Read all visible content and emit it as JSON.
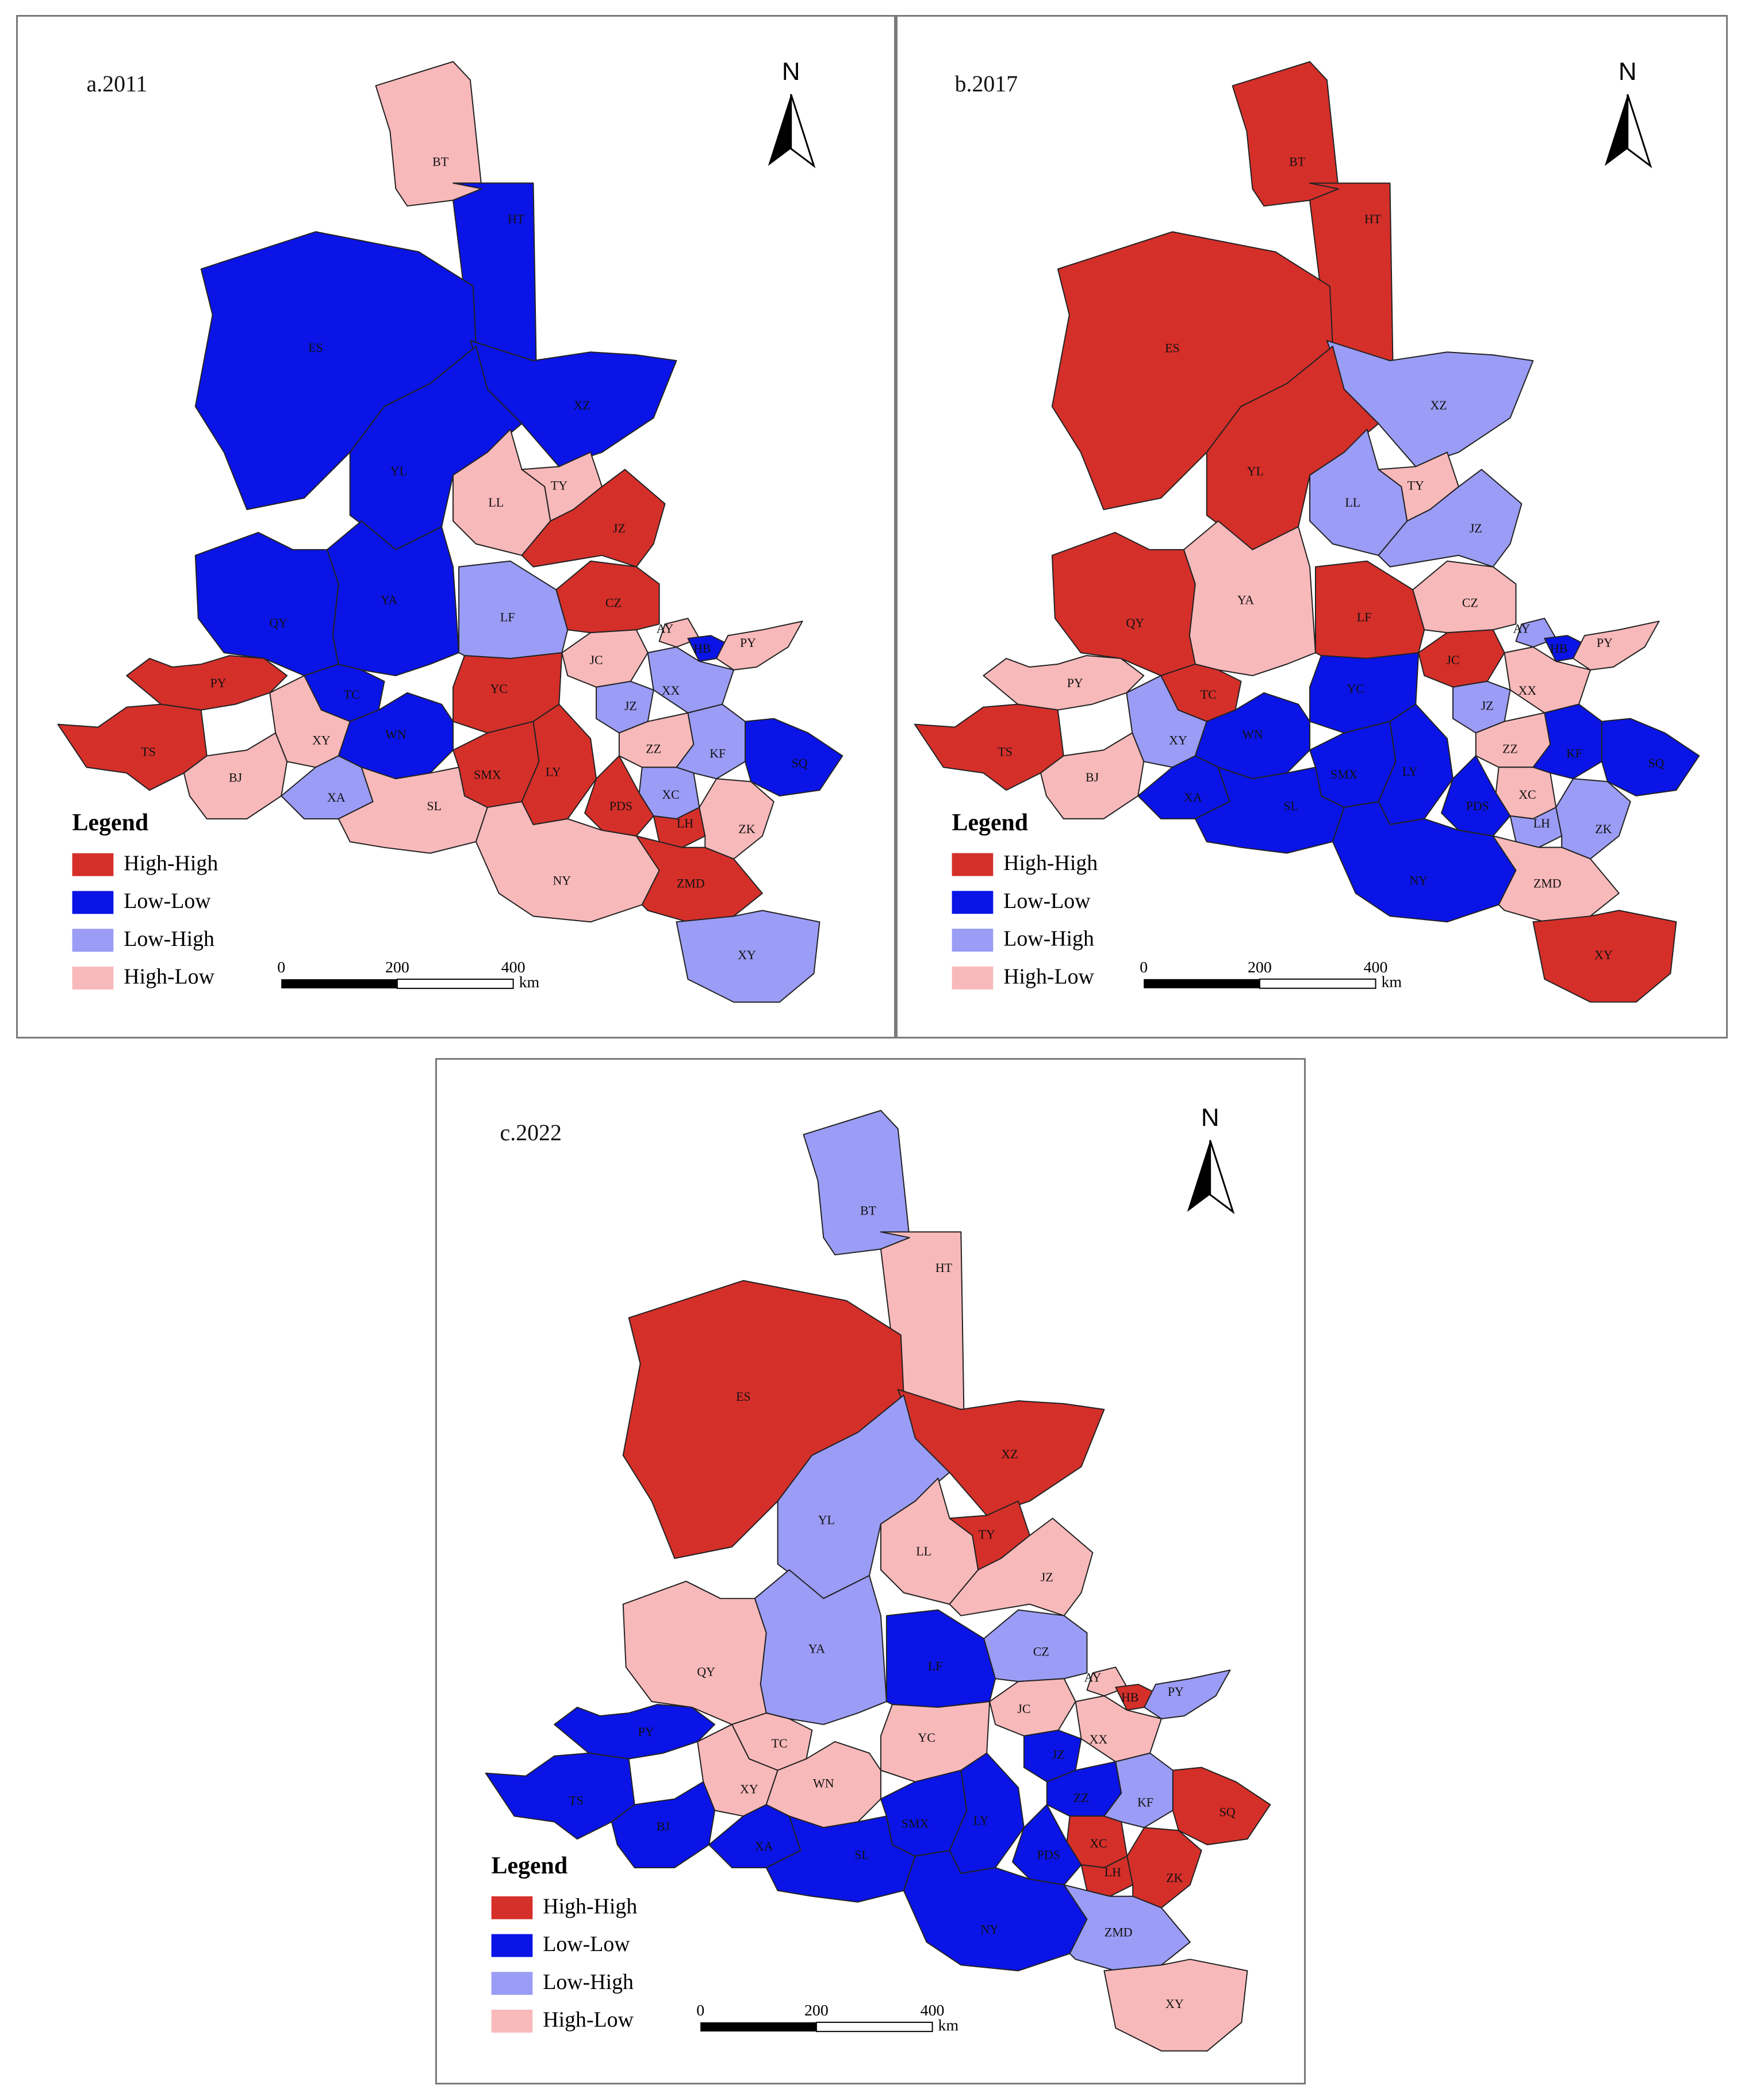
{
  "colors": {
    "High-High": "#d52f2a",
    "Low-Low": "#0a14e6",
    "Low-High": "#9a9cf5",
    "High-Low": "#f8b9ba"
  },
  "legend": {
    "title": "Legend",
    "items": [
      "High-High",
      "Low-Low",
      "Low-High",
      "High-Low"
    ]
  },
  "scale": {
    "ticks": [
      "0",
      "200",
      "400"
    ],
    "unit": "km"
  },
  "north": "N",
  "panels": [
    {
      "id": "a",
      "title": "a.2011",
      "regions": [
        {
          "label": "BT",
          "cls": "High-Low"
        },
        {
          "label": "HT",
          "cls": "Low-Low"
        },
        {
          "label": "ES",
          "cls": "Low-Low"
        },
        {
          "label": "XZ",
          "cls": "Low-Low"
        },
        {
          "label": "YL",
          "cls": "Low-Low"
        },
        {
          "label": "LL",
          "cls": "High-Low"
        },
        {
          "label": "TY",
          "cls": "High-Low"
        },
        {
          "label": "JZ",
          "cls": "High-High"
        },
        {
          "label": "QY",
          "cls": "Low-Low"
        },
        {
          "label": "YA",
          "cls": "Low-Low"
        },
        {
          "label": "LF",
          "cls": "Low-High"
        },
        {
          "label": "CZ",
          "cls": "High-High"
        },
        {
          "label": "AY",
          "cls": "High-Low"
        },
        {
          "label": "HB",
          "cls": "Low-Low"
        },
        {
          "label": "PY",
          "cls": "High-Low"
        },
        {
          "label": "JC",
          "cls": "High-Low"
        },
        {
          "label": "PY",
          "cls": "High-High"
        },
        {
          "label": "TC",
          "cls": "Low-Low"
        },
        {
          "label": "YC",
          "cls": "High-High"
        },
        {
          "label": "JZ",
          "cls": "Low-High"
        },
        {
          "label": "XX",
          "cls": "Low-High"
        },
        {
          "label": "TS",
          "cls": "High-High"
        },
        {
          "label": "XY",
          "cls": "High-Low"
        },
        {
          "label": "WN",
          "cls": "Low-Low"
        },
        {
          "label": "ZZ",
          "cls": "High-Low"
        },
        {
          "label": "KF",
          "cls": "Low-High"
        },
        {
          "label": "SQ",
          "cls": "Low-Low"
        },
        {
          "label": "BJ",
          "cls": "High-Low"
        },
        {
          "label": "SMX",
          "cls": "High-High"
        },
        {
          "label": "LY",
          "cls": "High-High"
        },
        {
          "label": "XC",
          "cls": "Low-High"
        },
        {
          "label": "XA",
          "cls": "Low-High"
        },
        {
          "label": "SL",
          "cls": "High-Low"
        },
        {
          "label": "PDS",
          "cls": "High-High"
        },
        {
          "label": "LH",
          "cls": "High-High"
        },
        {
          "label": "ZK",
          "cls": "High-Low"
        },
        {
          "label": "NY",
          "cls": "High-Low"
        },
        {
          "label": "ZMD",
          "cls": "High-High"
        },
        {
          "label": "XY",
          "cls": "Low-High"
        }
      ]
    },
    {
      "id": "b",
      "title": "b.2017",
      "regions": [
        {
          "label": "BT",
          "cls": "High-High"
        },
        {
          "label": "HT",
          "cls": "High-High"
        },
        {
          "label": "ES",
          "cls": "High-High"
        },
        {
          "label": "XZ",
          "cls": "Low-High"
        },
        {
          "label": "YL",
          "cls": "High-High"
        },
        {
          "label": "LL",
          "cls": "Low-High"
        },
        {
          "label": "TY",
          "cls": "High-Low"
        },
        {
          "label": "JZ",
          "cls": "Low-High"
        },
        {
          "label": "QY",
          "cls": "High-High"
        },
        {
          "label": "YA",
          "cls": "High-Low"
        },
        {
          "label": "LF",
          "cls": "High-High"
        },
        {
          "label": "CZ",
          "cls": "High-Low"
        },
        {
          "label": "AY",
          "cls": "Low-High"
        },
        {
          "label": "HB",
          "cls": "Low-Low"
        },
        {
          "label": "PY",
          "cls": "High-Low"
        },
        {
          "label": "JC",
          "cls": "High-High"
        },
        {
          "label": "PY",
          "cls": "High-Low"
        },
        {
          "label": "TC",
          "cls": "High-High"
        },
        {
          "label": "YC",
          "cls": "Low-Low"
        },
        {
          "label": "JZ",
          "cls": "Low-High"
        },
        {
          "label": "XX",
          "cls": "High-Low"
        },
        {
          "label": "TS",
          "cls": "High-High"
        },
        {
          "label": "XY",
          "cls": "Low-High"
        },
        {
          "label": "WN",
          "cls": "Low-Low"
        },
        {
          "label": "ZZ",
          "cls": "High-Low"
        },
        {
          "label": "KF",
          "cls": "Low-Low"
        },
        {
          "label": "SQ",
          "cls": "Low-Low"
        },
        {
          "label": "BJ",
          "cls": "High-Low"
        },
        {
          "label": "SMX",
          "cls": "Low-Low"
        },
        {
          "label": "LY",
          "cls": "Low-Low"
        },
        {
          "label": "XC",
          "cls": "High-Low"
        },
        {
          "label": "XA",
          "cls": "Low-Low"
        },
        {
          "label": "SL",
          "cls": "Low-Low"
        },
        {
          "label": "PDS",
          "cls": "Low-Low"
        },
        {
          "label": "LH",
          "cls": "Low-High"
        },
        {
          "label": "ZK",
          "cls": "Low-High"
        },
        {
          "label": "NY",
          "cls": "Low-Low"
        },
        {
          "label": "ZMD",
          "cls": "High-Low"
        },
        {
          "label": "XY",
          "cls": "High-High"
        }
      ]
    },
    {
      "id": "c",
      "title": "c.2022",
      "regions": [
        {
          "label": "BT",
          "cls": "Low-High"
        },
        {
          "label": "HT",
          "cls": "High-Low"
        },
        {
          "label": "ES",
          "cls": "High-High"
        },
        {
          "label": "XZ",
          "cls": "High-High"
        },
        {
          "label": "YL",
          "cls": "Low-High"
        },
        {
          "label": "LL",
          "cls": "High-Low"
        },
        {
          "label": "TY",
          "cls": "High-High"
        },
        {
          "label": "JZ",
          "cls": "High-Low"
        },
        {
          "label": "QY",
          "cls": "High-Low"
        },
        {
          "label": "YA",
          "cls": "Low-High"
        },
        {
          "label": "LF",
          "cls": "Low-Low"
        },
        {
          "label": "CZ",
          "cls": "Low-High"
        },
        {
          "label": "AY",
          "cls": "High-Low"
        },
        {
          "label": "HB",
          "cls": "High-High"
        },
        {
          "label": "PY",
          "cls": "Low-High"
        },
        {
          "label": "JC",
          "cls": "High-Low"
        },
        {
          "label": "PY",
          "cls": "Low-Low"
        },
        {
          "label": "TC",
          "cls": "High-Low"
        },
        {
          "label": "YC",
          "cls": "High-Low"
        },
        {
          "label": "JZ",
          "cls": "Low-Low"
        },
        {
          "label": "XX",
          "cls": "High-Low"
        },
        {
          "label": "TS",
          "cls": "Low-Low"
        },
        {
          "label": "XY",
          "cls": "High-Low"
        },
        {
          "label": "WN",
          "cls": "High-Low"
        },
        {
          "label": "ZZ",
          "cls": "Low-Low"
        },
        {
          "label": "KF",
          "cls": "Low-High"
        },
        {
          "label": "SQ",
          "cls": "High-High"
        },
        {
          "label": "BJ",
          "cls": "Low-Low"
        },
        {
          "label": "SMX",
          "cls": "Low-Low"
        },
        {
          "label": "LY",
          "cls": "Low-Low"
        },
        {
          "label": "XC",
          "cls": "High-High"
        },
        {
          "label": "XA",
          "cls": "Low-Low"
        },
        {
          "label": "SL",
          "cls": "Low-Low"
        },
        {
          "label": "PDS",
          "cls": "Low-Low"
        },
        {
          "label": "LH",
          "cls": "High-High"
        },
        {
          "label": "ZK",
          "cls": "High-High"
        },
        {
          "label": "NY",
          "cls": "Low-Low"
        },
        {
          "label": "ZMD",
          "cls": "Low-High"
        },
        {
          "label": "XY",
          "cls": "High-Low"
        }
      ]
    }
  ]
}
